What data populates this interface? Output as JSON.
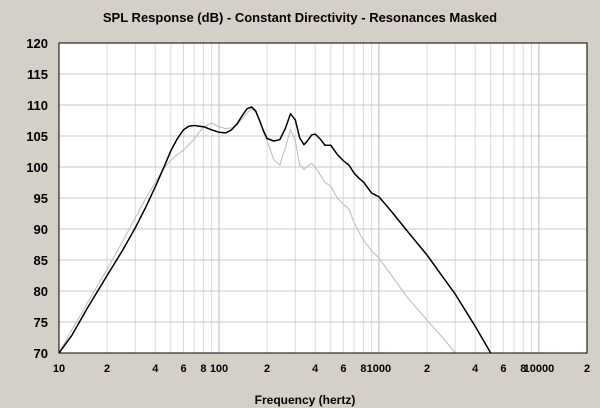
{
  "chart_data": {
    "type": "line",
    "title": "SPL Response (dB) - Constant Directivity - Resonances Masked",
    "xlabel": "Frequency (hertz)",
    "ylabel": "",
    "x_scale": "log",
    "xlim": [
      10,
      20000
    ],
    "ylim": [
      70,
      120
    ],
    "grid": true,
    "legend": "none",
    "y_ticks": [
      70,
      75,
      80,
      85,
      90,
      95,
      100,
      105,
      110,
      115,
      120
    ],
    "x_ticks": [
      {
        "value": 10,
        "label": "10"
      },
      {
        "value": 20,
        "label": "2"
      },
      {
        "value": 40,
        "label": "4"
      },
      {
        "value": 60,
        "label": "6"
      },
      {
        "value": 80,
        "label": "8"
      },
      {
        "value": 100,
        "label": "100"
      },
      {
        "value": 200,
        "label": "2"
      },
      {
        "value": 400,
        "label": "4"
      },
      {
        "value": 600,
        "label": "6"
      },
      {
        "value": 800,
        "label": "8"
      },
      {
        "value": 1000,
        "label": "1000"
      },
      {
        "value": 2000,
        "label": "2"
      },
      {
        "value": 4000,
        "label": "4"
      },
      {
        "value": 6000,
        "label": "6"
      },
      {
        "value": 8000,
        "label": "8"
      },
      {
        "value": 10000,
        "label": "10000"
      },
      {
        "value": 20000,
        "label": "2"
      }
    ],
    "series": [
      {
        "color": "#000000",
        "x": [
          10,
          12,
          15,
          20,
          25,
          30,
          35,
          40,
          45,
          50,
          55,
          60,
          65,
          70,
          80,
          90,
          100,
          110,
          120,
          130,
          140,
          150,
          160,
          170,
          180,
          190,
          200,
          220,
          240,
          260,
          280,
          300,
          320,
          340,
          360,
          380,
          400,
          430,
          460,
          500,
          550,
          600,
          650,
          700,
          750,
          800,
          900,
          1000,
          1200,
          1500,
          2000,
          2500,
          3000,
          4000,
          5000
        ],
        "y": [
          70,
          72.8,
          77.2,
          82.5,
          86.6,
          90.2,
          93.6,
          96.8,
          99.8,
          102.6,
          104.6,
          106.0,
          106.6,
          106.7,
          106.5,
          106.0,
          105.6,
          105.5,
          106.0,
          107.0,
          108.3,
          109.4,
          109.7,
          109.0,
          107.4,
          105.8,
          104.6,
          104.2,
          104.4,
          106.2,
          108.6,
          107.6,
          104.7,
          103.6,
          104.3,
          105.2,
          105.3,
          104.5,
          103.5,
          103.5,
          102.0,
          101.0,
          100.3,
          99.0,
          98.2,
          97.6,
          95.8,
          95.2,
          92.8,
          89.7,
          85.8,
          82.3,
          79.5,
          74.3,
          70
        ]
      },
      {
        "color": "#c0c0c0",
        "x": [
          10,
          12,
          15,
          20,
          25,
          30,
          35,
          40,
          45,
          50,
          55,
          60,
          70,
          80,
          90,
          100,
          110,
          120,
          130,
          140,
          150,
          160,
          170,
          180,
          200,
          220,
          240,
          260,
          280,
          300,
          320,
          340,
          360,
          380,
          400,
          430,
          460,
          500,
          550,
          600,
          650,
          700,
          800,
          900,
          1000,
          1200,
          1500,
          2000,
          2500,
          3000
        ],
        "y": [
          70,
          73.7,
          78.0,
          83.5,
          88.0,
          91.8,
          95.0,
          97.5,
          99.7,
          101.1,
          102.0,
          102.7,
          104.5,
          106.5,
          107.1,
          106.5,
          106.2,
          106.3,
          106.8,
          107.8,
          108.7,
          109.5,
          108.8,
          107.4,
          104.2,
          101.2,
          100.3,
          103.1,
          106.1,
          104.2,
          100.3,
          99.6,
          100.2,
          100.6,
          100.0,
          98.7,
          97.5,
          96.9,
          95.0,
          94.0,
          93.2,
          91.0,
          88.2,
          86.5,
          85.3,
          82.5,
          79.0,
          75.3,
          72.5,
          70
        ]
      }
    ]
  }
}
